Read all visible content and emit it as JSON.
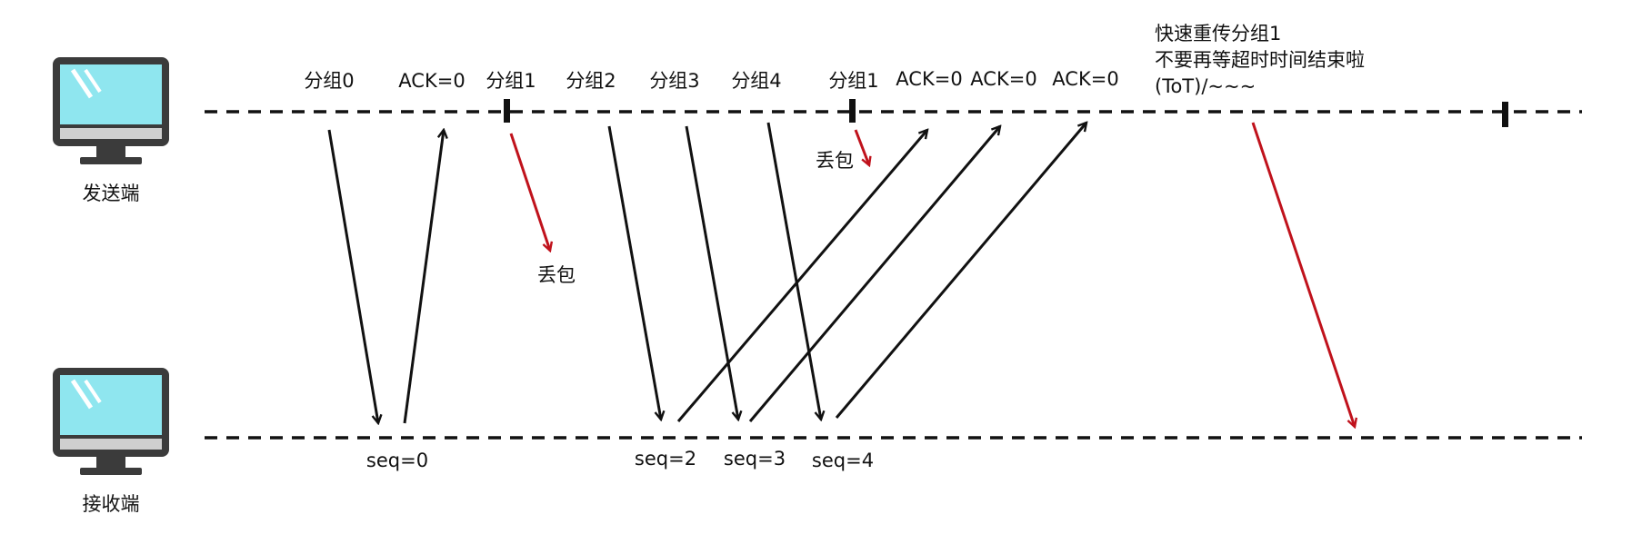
{
  "diagram_title": "",
  "colors": {
    "line": "#111111",
    "loss": "#c0121c",
    "screen": "#8fe6ef",
    "monitor_frame": "#3b3b3b",
    "monitor_stand": "#cfcfcf"
  },
  "sender": {
    "label": "发送端",
    "icon": "monitor-icon"
  },
  "receiver": {
    "label": "接收端",
    "icon": "monitor-icon"
  },
  "top_labels": {
    "pkt0": "分组0",
    "ack_a": "ACK=0",
    "pkt1": "分组1",
    "pkt2": "分组2",
    "pkt3": "分组3",
    "pkt4": "分组4",
    "pkt1_resend": "分组1",
    "ack_b": "ACK=0",
    "ack_c": "ACK=0",
    "ack_d": "ACK=0"
  },
  "note_lines": [
    "快速重传分组1",
    "不要再等超时时间结束啦",
    "(ToT)/~~~"
  ],
  "loss_labels": {
    "first": "丢包",
    "second": "丢包"
  },
  "seq_labels": {
    "s0": "seq=0",
    "s2": "seq=2",
    "s3": "seq=3",
    "s4": "seq=4"
  }
}
